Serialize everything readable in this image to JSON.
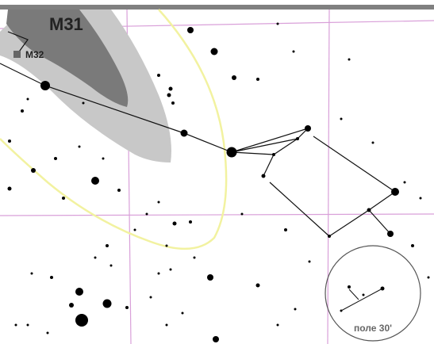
{
  "labels": {
    "galaxy_main": "M31",
    "galaxy_companion": "M32",
    "field_of_view": "поле 30'"
  }
}
